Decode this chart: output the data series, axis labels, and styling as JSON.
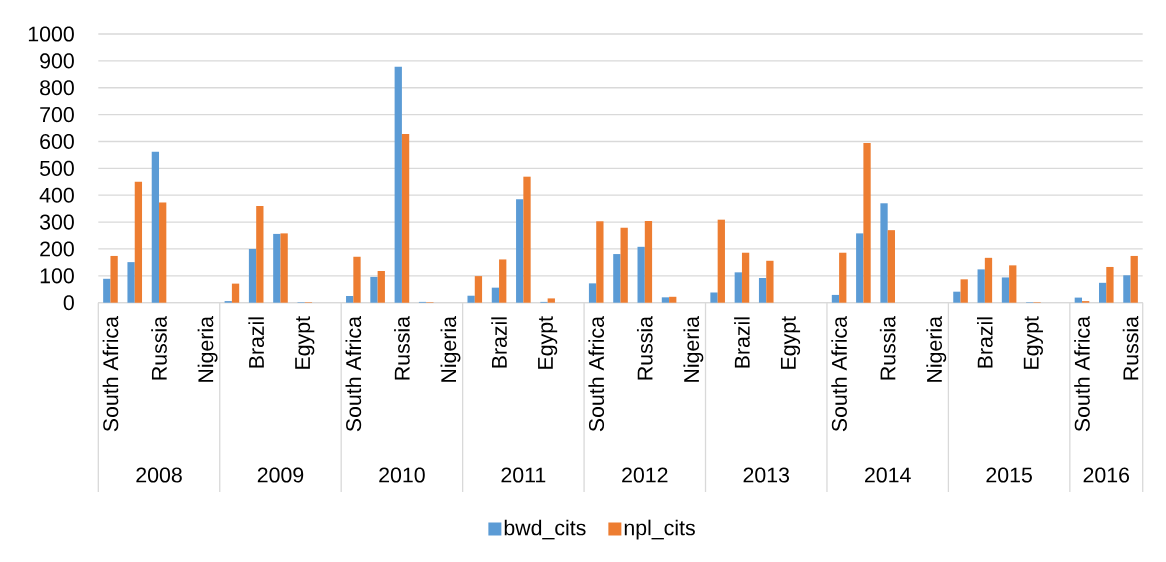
{
  "chart_data": {
    "type": "bar",
    "categories": [
      "South Africa",
      null,
      "Russia",
      null,
      "Nigeria",
      null,
      "Brazil",
      null,
      "Egypt",
      null,
      "South Africa",
      null,
      "Russia",
      null,
      "Nigeria",
      null,
      "Brazil",
      null,
      "Egypt",
      null,
      "South Africa",
      null,
      "Russia",
      null,
      "Nigeria",
      null,
      "Brazil",
      null,
      "Egypt",
      null,
      "South Africa",
      null,
      "Russia",
      null,
      "Nigeria",
      null,
      "Brazil",
      null,
      "Egypt",
      null,
      "South Africa",
      null,
      "Russia"
    ],
    "series": [
      {
        "name": "bwd_cits",
        "color": "#5b9bd5",
        "values": [
          89,
          151,
          562,
          null,
          null,
          6,
          200,
          256,
          2,
          null,
          25,
          96,
          878,
          3,
          null,
          26,
          56,
          385,
          3,
          null,
          72,
          181,
          208,
          20,
          null,
          38,
          113,
          92,
          null,
          null,
          29,
          258,
          370,
          null,
          null,
          41,
          124,
          94,
          2,
          null,
          19,
          74,
          102
        ]
      },
      {
        "name": "npl_cits",
        "color": "#ed7d31",
        "values": [
          174,
          450,
          373,
          null,
          null,
          71,
          360,
          258,
          2,
          null,
          171,
          118,
          628,
          2,
          null,
          99,
          161,
          469,
          16,
          null,
          303,
          279,
          304,
          22,
          null,
          309,
          186,
          156,
          null,
          null,
          186,
          594,
          270,
          null,
          null,
          87,
          167,
          139,
          2,
          null,
          6,
          133,
          174
        ]
      }
    ],
    "annotations": [
      "2008",
      "2009",
      "2010",
      "2011",
      "2012",
      "2013",
      "2014",
      "2015",
      "2016"
    ],
    "ylim": [
      0,
      1000
    ],
    "yticks": [
      0,
      100,
      200,
      300,
      400,
      500,
      600,
      700,
      800,
      900,
      1000
    ],
    "grid": "y",
    "legend": "bottom"
  }
}
